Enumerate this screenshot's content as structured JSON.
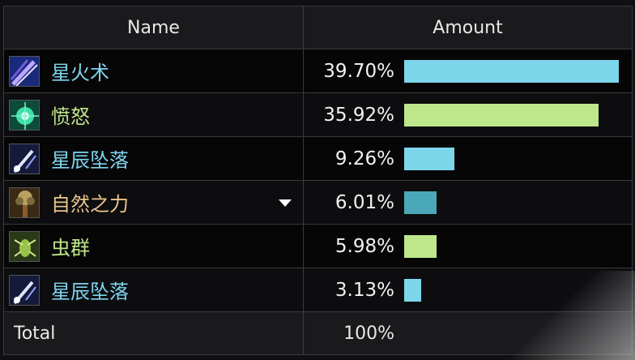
{
  "header": {
    "name_label": "Name",
    "amount_label": "Amount"
  },
  "rows": [
    {
      "name": "星火术",
      "percent_label": "39.70%",
      "percent": 39.7,
      "name_color": "#7fd4ee",
      "bar_color": "#7dd6ea",
      "icon": "starfire-icon"
    },
    {
      "name": "愤怒",
      "percent_label": "35.92%",
      "percent": 35.92,
      "name_color": "#bfe58a",
      "bar_color": "#bde78a",
      "icon": "wrath-icon"
    },
    {
      "name": "星辰坠落",
      "percent_label": "9.26%",
      "percent": 9.26,
      "name_color": "#7fd4ee",
      "bar_color": "#7dd6ea",
      "icon": "starfall-icon"
    },
    {
      "name": "自然之力",
      "percent_label": "6.01%",
      "percent": 6.01,
      "name_color": "#e9c58a",
      "bar_color": "#4aa8b8",
      "icon": "force-of-nature-icon"
    },
    {
      "name": "虫群",
      "percent_label": "5.98%",
      "percent": 5.98,
      "name_color": "#bfe58a",
      "bar_color": "#bde78a",
      "icon": "insect-swarm-icon"
    },
    {
      "name": "星辰坠落",
      "percent_label": "3.13%",
      "percent": 3.13,
      "name_color": "#7fd4ee",
      "bar_color": "#7dd6ea",
      "icon": "starfall-icon"
    }
  ],
  "footer": {
    "total_label": "Total",
    "total_percent": "100%"
  },
  "bar_max_percent": 39.7
}
